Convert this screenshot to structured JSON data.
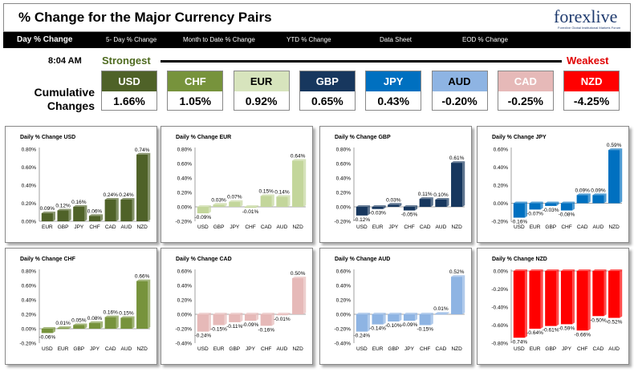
{
  "header": {
    "title": "% Change for the Major Currency Pairs",
    "logo": "forexlive",
    "logo_tagline": "Forexlive Global Institutional Markets Forum"
  },
  "nav": [
    {
      "label": "Day % Change",
      "active": true
    },
    {
      "label": "5- Day % Change",
      "active": false
    },
    {
      "label": "Month to Date % Change",
      "active": false
    },
    {
      "label": "YTD % Change",
      "active": false
    },
    {
      "label": "Data Sheet",
      "active": false
    },
    {
      "label": "EOD % Change",
      "active": false
    }
  ],
  "summary": {
    "time": "8:04 AM",
    "strongest_label": "Strongest",
    "weakest_label": "Weakest",
    "cumulative_label_1": "Cumulative",
    "cumulative_label_2": "Changes",
    "cells": [
      {
        "currency": "USD",
        "value": "1.66%",
        "color": "#4f6228",
        "text": "#ffffff"
      },
      {
        "currency": "CHF",
        "value": "1.05%",
        "color": "#77933c",
        "text": "#ffffff"
      },
      {
        "currency": "EUR",
        "value": "0.92%",
        "color": "#d7e4bd",
        "text": "#000000"
      },
      {
        "currency": "GBP",
        "value": "0.65%",
        "color": "#17375e",
        "text": "#ffffff"
      },
      {
        "currency": "JPY",
        "value": "0.43%",
        "color": "#0070c0",
        "text": "#ffffff"
      },
      {
        "currency": "AUD",
        "value": "-0.20%",
        "color": "#8eb4e3",
        "text": "#000000"
      },
      {
        "currency": "CAD",
        "value": "-0.25%",
        "color": "#e6b9b8",
        "text": "#ffffff"
      },
      {
        "currency": "NZD",
        "value": "-4.25%",
        "color": "#ff0000",
        "text": "#ffffff"
      }
    ]
  },
  "chart_data": [
    {
      "type": "bar",
      "title": "Daily % Change USD",
      "categories": [
        "EUR",
        "GBP",
        "JPY",
        "CHF",
        "CAD",
        "AUD",
        "NZD"
      ],
      "values": [
        0.09,
        0.12,
        0.16,
        0.06,
        0.24,
        0.24,
        0.74
      ],
      "labels": [
        "0.09%",
        "0.12%",
        "0.16%",
        "0.06%",
        "0.24%",
        "0.24%",
        "0.74%"
      ],
      "ylim": [
        0,
        0.8
      ],
      "ticks": [
        "0.00%",
        "0.20%",
        "0.40%",
        "0.60%",
        "0.80%"
      ],
      "color": "#4f6228"
    },
    {
      "type": "bar",
      "title": "Daily % Change EUR",
      "categories": [
        "USD",
        "GBP",
        "JPY",
        "CHF",
        "CAD",
        "AUD",
        "NZD"
      ],
      "values": [
        -0.09,
        0.03,
        0.07,
        -0.01,
        0.15,
        0.14,
        0.64
      ],
      "labels": [
        "-0.09%",
        "0.03%",
        "0.07%",
        "-0.01%",
        "0.15%",
        "0.14%",
        "0.64%"
      ],
      "ylim": [
        -0.2,
        0.8
      ],
      "ticks": [
        "-0.20%",
        "0.00%",
        "0.20%",
        "0.40%",
        "0.60%",
        "0.80%"
      ],
      "color": "#c3d69b"
    },
    {
      "type": "bar",
      "title": "Daily % Change GBP",
      "categories": [
        "USD",
        "EUR",
        "JPY",
        "CHF",
        "CAD",
        "AUD",
        "NZD"
      ],
      "values": [
        -0.12,
        -0.03,
        0.03,
        -0.05,
        0.11,
        0.1,
        0.61
      ],
      "labels": [
        "-0.12%",
        "-0.03%",
        "0.03%",
        "-0.05%",
        "0.11%",
        "0.10%",
        "0.61%"
      ],
      "ylim": [
        -0.2,
        0.8
      ],
      "ticks": [
        "-0.20%",
        "0.00%",
        "0.20%",
        "0.40%",
        "0.60%",
        "0.80%"
      ],
      "color": "#17375e"
    },
    {
      "type": "bar",
      "title": "Daily % Change JPY",
      "categories": [
        "USD",
        "EUR",
        "GBP",
        "CHF",
        "CAD",
        "AUD",
        "NZD"
      ],
      "values": [
        -0.16,
        -0.07,
        -0.03,
        -0.08,
        0.09,
        0.09,
        0.59
      ],
      "labels": [
        "-0.16%",
        "-0.07%",
        "-0.03%",
        "-0.08%",
        "0.09%",
        "0.09%",
        "0.59%"
      ],
      "ylim": [
        -0.2,
        0.6
      ],
      "ticks": [
        "-0.20%",
        "0.00%",
        "0.20%",
        "0.40%",
        "0.60%"
      ],
      "color": "#0070c0"
    },
    {
      "type": "bar",
      "title": "Daily % Change CHF",
      "categories": [
        "USD",
        "EUR",
        "GBP",
        "JPY",
        "CAD",
        "AUD",
        "NZD"
      ],
      "values": [
        -0.06,
        0.01,
        0.05,
        0.08,
        0.16,
        0.15,
        0.66
      ],
      "labels": [
        "-0.06%",
        "0.01%",
        "0.05%",
        "0.08%",
        "0.16%",
        "0.15%",
        "0.66%"
      ],
      "ylim": [
        -0.2,
        0.8
      ],
      "ticks": [
        "-0.20%",
        "0.00%",
        "0.20%",
        "0.40%",
        "0.60%",
        "0.80%"
      ],
      "color": "#77933c"
    },
    {
      "type": "bar",
      "title": "Daily % Change CAD",
      "categories": [
        "USD",
        "EUR",
        "GBP",
        "JPY",
        "CHF",
        "AUD",
        "NZD"
      ],
      "values": [
        -0.24,
        -0.15,
        -0.11,
        -0.09,
        -0.16,
        -0.01,
        0.5
      ],
      "labels": [
        "-0.24%",
        "-0.15%",
        "-0.11%",
        "-0.09%",
        "-0.16%",
        "-0.01%",
        "0.50%"
      ],
      "ylim": [
        -0.4,
        0.6
      ],
      "ticks": [
        "-0.40%",
        "-0.20%",
        "0.00%",
        "0.20%",
        "0.40%",
        "0.60%"
      ],
      "color": "#e6b9b8"
    },
    {
      "type": "bar",
      "title": "Daily % Change AUD",
      "categories": [
        "USD",
        "EUR",
        "GBP",
        "JPY",
        "CHF",
        "CAD",
        "NZD"
      ],
      "values": [
        -0.24,
        -0.14,
        -0.1,
        -0.09,
        -0.15,
        0.01,
        0.52
      ],
      "labels": [
        "-0.24%",
        "-0.14%",
        "-0.10%",
        "-0.09%",
        "-0.15%",
        "0.01%",
        "0.52%"
      ],
      "ylim": [
        -0.4,
        0.6
      ],
      "ticks": [
        "-0.40%",
        "-0.20%",
        "0.00%",
        "0.20%",
        "0.40%",
        "0.60%"
      ],
      "color": "#8eb4e3"
    },
    {
      "type": "bar",
      "title": "Daily % Change NZD",
      "categories": [
        "USD",
        "EUR",
        "GBP",
        "JPY",
        "CHF",
        "CAD",
        "AUD"
      ],
      "values": [
        -0.74,
        -0.64,
        -0.61,
        -0.59,
        -0.66,
        -0.5,
        -0.52
      ],
      "labels": [
        "-0.74%",
        "-0.64%",
        "-0.61%",
        "-0.59%",
        "-0.66%",
        "-0.50%",
        "-0.52%"
      ],
      "ylim": [
        -0.8,
        0.0
      ],
      "ticks": [
        "-0.80%",
        "-0.60%",
        "-0.40%",
        "-0.20%",
        "0.00%"
      ],
      "color": "#ff0000",
      "cats_on_top": true
    }
  ]
}
